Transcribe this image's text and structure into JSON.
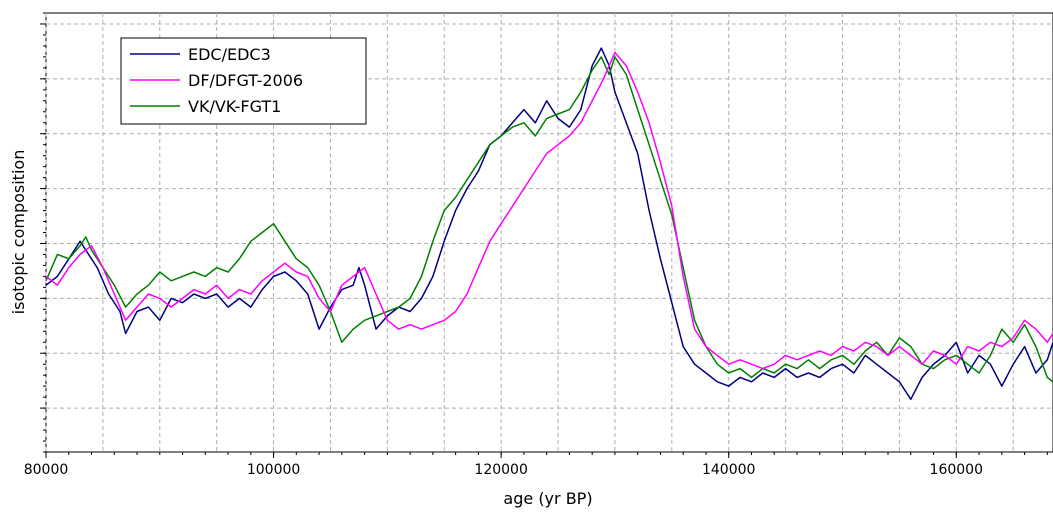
{
  "chart_data": {
    "type": "line",
    "title": "",
    "xlabel": "age (yr BP)",
    "ylabel": "isotopic composition",
    "xlim": [
      80000,
      168500
    ],
    "ylim": [
      0,
      100
    ],
    "grid": true,
    "legend_position": "top-left",
    "x_ticks": [
      "80000",
      "100000",
      "120000",
      "140000",
      "160000"
    ],
    "series": [
      {
        "name": "EDC/EDC3",
        "color": "#000080",
        "points": [
          [
            80000,
            38
          ],
          [
            81000,
            40
          ],
          [
            82000,
            44
          ],
          [
            83000,
            48
          ],
          [
            83500,
            46
          ],
          [
            84500,
            42
          ],
          [
            85500,
            36
          ],
          [
            86500,
            32
          ],
          [
            87000,
            27
          ],
          [
            88000,
            32
          ],
          [
            89000,
            33
          ],
          [
            90000,
            30
          ],
          [
            91000,
            35
          ],
          [
            92000,
            34
          ],
          [
            93000,
            36
          ],
          [
            94000,
            35
          ],
          [
            95000,
            36
          ],
          [
            96000,
            33
          ],
          [
            97000,
            35
          ],
          [
            98000,
            33
          ],
          [
            99000,
            37
          ],
          [
            100000,
            40
          ],
          [
            101000,
            41
          ],
          [
            102000,
            39
          ],
          [
            103000,
            36
          ],
          [
            104000,
            28
          ],
          [
            105000,
            33
          ],
          [
            106000,
            37
          ],
          [
            107000,
            38
          ],
          [
            107500,
            42
          ],
          [
            108000,
            38
          ],
          [
            109000,
            28
          ],
          [
            110000,
            31
          ],
          [
            111000,
            33
          ],
          [
            112000,
            32
          ],
          [
            113000,
            35
          ],
          [
            114000,
            40
          ],
          [
            115000,
            48
          ],
          [
            116000,
            55
          ],
          [
            117000,
            60
          ],
          [
            118000,
            64
          ],
          [
            119000,
            70
          ],
          [
            120000,
            72
          ],
          [
            121000,
            75
          ],
          [
            122000,
            78
          ],
          [
            123000,
            75
          ],
          [
            124000,
            80
          ],
          [
            125000,
            76
          ],
          [
            126000,
            74
          ],
          [
            127000,
            78
          ],
          [
            128000,
            88
          ],
          [
            128800,
            92
          ],
          [
            129500,
            88
          ],
          [
            130000,
            82
          ],
          [
            131000,
            75
          ],
          [
            132000,
            68
          ],
          [
            133000,
            55
          ],
          [
            134000,
            44
          ],
          [
            135000,
            34
          ],
          [
            136000,
            24
          ],
          [
            137000,
            20
          ],
          [
            138000,
            18
          ],
          [
            139000,
            16
          ],
          [
            140000,
            15
          ],
          [
            141000,
            17
          ],
          [
            142000,
            16
          ],
          [
            143000,
            18
          ],
          [
            144000,
            17
          ],
          [
            145000,
            19
          ],
          [
            146000,
            17
          ],
          [
            147000,
            18
          ],
          [
            148000,
            17
          ],
          [
            149000,
            19
          ],
          [
            150000,
            20
          ],
          [
            151000,
            18
          ],
          [
            152000,
            22
          ],
          [
            153000,
            20
          ],
          [
            154000,
            18
          ],
          [
            155000,
            16
          ],
          [
            156000,
            12
          ],
          [
            157000,
            17
          ],
          [
            158000,
            20
          ],
          [
            159000,
            22
          ],
          [
            160000,
            25
          ],
          [
            161000,
            18
          ],
          [
            162000,
            22
          ],
          [
            163000,
            20
          ],
          [
            164000,
            15
          ],
          [
            165000,
            20
          ],
          [
            166000,
            24
          ],
          [
            167000,
            18
          ],
          [
            168000,
            21
          ],
          [
            168500,
            25
          ]
        ]
      },
      {
        "name": "DF/DFGT-2006",
        "color": "#ff00ff",
        "points": [
          [
            80000,
            40
          ],
          [
            81000,
            38
          ],
          [
            82000,
            42
          ],
          [
            83000,
            45
          ],
          [
            84000,
            47
          ],
          [
            85000,
            42
          ],
          [
            86000,
            36
          ],
          [
            87000,
            30
          ],
          [
            88000,
            33
          ],
          [
            89000,
            36
          ],
          [
            90000,
            35
          ],
          [
            91000,
            33
          ],
          [
            92000,
            35
          ],
          [
            93000,
            37
          ],
          [
            94000,
            36
          ],
          [
            95000,
            38
          ],
          [
            96000,
            35
          ],
          [
            97000,
            37
          ],
          [
            98000,
            36
          ],
          [
            99000,
            39
          ],
          [
            100000,
            41
          ],
          [
            101000,
            43
          ],
          [
            102000,
            41
          ],
          [
            103000,
            40
          ],
          [
            104000,
            35
          ],
          [
            105000,
            32
          ],
          [
            106000,
            38
          ],
          [
            107000,
            40
          ],
          [
            108000,
            42
          ],
          [
            109000,
            36
          ],
          [
            110000,
            30
          ],
          [
            111000,
            28
          ],
          [
            112000,
            29
          ],
          [
            113000,
            28
          ],
          [
            114000,
            29
          ],
          [
            115000,
            30
          ],
          [
            116000,
            32
          ],
          [
            117000,
            36
          ],
          [
            118000,
            42
          ],
          [
            119000,
            48
          ],
          [
            120000,
            52
          ],
          [
            121000,
            56
          ],
          [
            122000,
            60
          ],
          [
            123000,
            64
          ],
          [
            124000,
            68
          ],
          [
            125000,
            70
          ],
          [
            126000,
            72
          ],
          [
            127000,
            75
          ],
          [
            128000,
            80
          ],
          [
            129000,
            85
          ],
          [
            130000,
            91
          ],
          [
            131000,
            88
          ],
          [
            132000,
            82
          ],
          [
            133000,
            75
          ],
          [
            134000,
            66
          ],
          [
            135000,
            56
          ],
          [
            136000,
            40
          ],
          [
            137000,
            28
          ],
          [
            138000,
            24
          ],
          [
            139000,
            22
          ],
          [
            140000,
            20
          ],
          [
            141000,
            21
          ],
          [
            142000,
            20
          ],
          [
            143000,
            19
          ],
          [
            144000,
            20
          ],
          [
            145000,
            22
          ],
          [
            146000,
            21
          ],
          [
            147000,
            22
          ],
          [
            148000,
            23
          ],
          [
            149000,
            22
          ],
          [
            150000,
            24
          ],
          [
            151000,
            23
          ],
          [
            152000,
            25
          ],
          [
            153000,
            24
          ],
          [
            154000,
            22
          ],
          [
            155000,
            24
          ],
          [
            156000,
            22
          ],
          [
            157000,
            20
          ],
          [
            158000,
            23
          ],
          [
            159000,
            22
          ],
          [
            160000,
            20
          ],
          [
            161000,
            24
          ],
          [
            162000,
            23
          ],
          [
            163000,
            25
          ],
          [
            164000,
            24
          ],
          [
            165000,
            26
          ],
          [
            166000,
            30
          ],
          [
            167000,
            28
          ],
          [
            168000,
            25
          ],
          [
            168500,
            27
          ]
        ]
      },
      {
        "name": "VK/VK-FGT1",
        "color": "#008000",
        "points": [
          [
            80000,
            39
          ],
          [
            81000,
            45
          ],
          [
            82000,
            44
          ],
          [
            83000,
            47
          ],
          [
            83500,
            49
          ],
          [
            84000,
            46
          ],
          [
            85000,
            42
          ],
          [
            86000,
            38
          ],
          [
            87000,
            33
          ],
          [
            88000,
            36
          ],
          [
            89000,
            38
          ],
          [
            90000,
            41
          ],
          [
            91000,
            39
          ],
          [
            92000,
            40
          ],
          [
            93000,
            41
          ],
          [
            94000,
            40
          ],
          [
            95000,
            42
          ],
          [
            96000,
            41
          ],
          [
            97000,
            44
          ],
          [
            98000,
            48
          ],
          [
            99000,
            50
          ],
          [
            100000,
            52
          ],
          [
            101000,
            48
          ],
          [
            102000,
            44
          ],
          [
            103000,
            42
          ],
          [
            104000,
            38
          ],
          [
            105000,
            32
          ],
          [
            106000,
            25
          ],
          [
            107000,
            28
          ],
          [
            108000,
            30
          ],
          [
            109000,
            31
          ],
          [
            110000,
            32
          ],
          [
            111000,
            33
          ],
          [
            112000,
            35
          ],
          [
            113000,
            40
          ],
          [
            114000,
            48
          ],
          [
            115000,
            55
          ],
          [
            116000,
            58
          ],
          [
            117000,
            62
          ],
          [
            118000,
            66
          ],
          [
            119000,
            70
          ],
          [
            120000,
            72
          ],
          [
            121000,
            74
          ],
          [
            122000,
            75
          ],
          [
            123000,
            72
          ],
          [
            124000,
            76
          ],
          [
            125000,
            77
          ],
          [
            126000,
            78
          ],
          [
            127000,
            82
          ],
          [
            128000,
            87
          ],
          [
            128800,
            90
          ],
          [
            129500,
            86
          ],
          [
            130000,
            90
          ],
          [
            131000,
            86
          ],
          [
            132000,
            78
          ],
          [
            133000,
            70
          ],
          [
            134000,
            62
          ],
          [
            135000,
            54
          ],
          [
            136000,
            42
          ],
          [
            137000,
            30
          ],
          [
            138000,
            24
          ],
          [
            139000,
            20
          ],
          [
            140000,
            18
          ],
          [
            141000,
            19
          ],
          [
            142000,
            17
          ],
          [
            143000,
            19
          ],
          [
            144000,
            18
          ],
          [
            145000,
            20
          ],
          [
            146000,
            19
          ],
          [
            147000,
            21
          ],
          [
            148000,
            19
          ],
          [
            149000,
            21
          ],
          [
            150000,
            22
          ],
          [
            151000,
            20
          ],
          [
            152000,
            23
          ],
          [
            153000,
            25
          ],
          [
            154000,
            22
          ],
          [
            155000,
            26
          ],
          [
            156000,
            24
          ],
          [
            157000,
            20
          ],
          [
            158000,
            19
          ],
          [
            159000,
            21
          ],
          [
            160000,
            22
          ],
          [
            161000,
            20
          ],
          [
            162000,
            18
          ],
          [
            163000,
            22
          ],
          [
            164000,
            28
          ],
          [
            165000,
            25
          ],
          [
            166000,
            29
          ],
          [
            167000,
            24
          ],
          [
            168000,
            17
          ],
          [
            168500,
            16
          ]
        ]
      }
    ]
  }
}
